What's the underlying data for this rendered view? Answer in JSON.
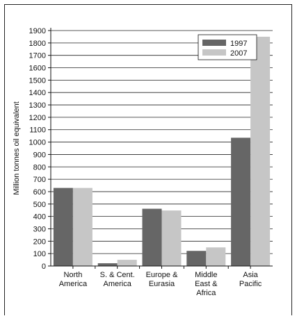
{
  "chart_data": {
    "type": "bar",
    "categories": [
      [
        "North",
        "America"
      ],
      [
        "S. & Cent.",
        "America"
      ],
      [
        "Europe &",
        "Eurasia"
      ],
      [
        "Middle",
        "East &",
        "Africa"
      ],
      [
        "Asia",
        "Pacific"
      ]
    ],
    "series": [
      {
        "name": "1997",
        "color": "#666666",
        "values": [
          630,
          22,
          462,
          122,
          1035
        ]
      },
      {
        "name": "2007",
        "color": "#c6c6c6",
        "values": [
          630,
          50,
          448,
          150,
          1850
        ]
      }
    ],
    "ylabel": "Million tonnes oil equivalent",
    "ylim": [
      0,
      1900
    ],
    "yticks": [
      0,
      100,
      200,
      300,
      400,
      500,
      600,
      700,
      800,
      900,
      1000,
      1100,
      1200,
      1300,
      1400,
      1500,
      1600,
      1700,
      1800,
      1900
    ],
    "grid": true,
    "legend_position": "top-right"
  }
}
